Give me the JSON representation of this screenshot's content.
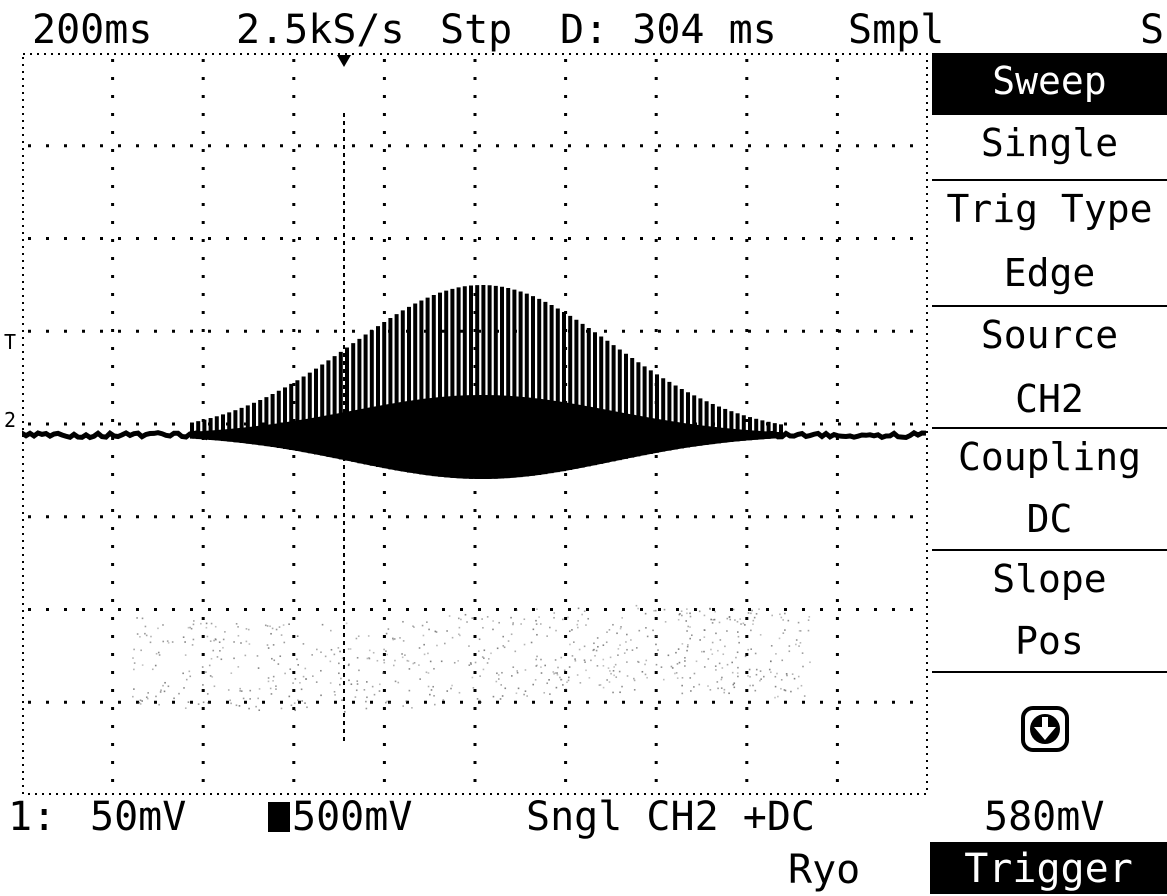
{
  "header": {
    "timebase": "200ms",
    "sample_rate": "2.5kS/s",
    "run_state": "Stp",
    "delay": "D: 304 ms",
    "acq_mode": "Smpl",
    "corner": "S"
  },
  "menu": {
    "items": [
      {
        "label": "Sweep",
        "selected": true
      },
      {
        "label": "Single",
        "selected": false
      },
      {
        "label": "Trig Type",
        "selected": false
      },
      {
        "label": "Edge",
        "selected": false
      },
      {
        "label": "Source",
        "selected": false
      },
      {
        "label": "CH2",
        "selected": false
      },
      {
        "label": "Coupling",
        "selected": false
      },
      {
        "label": "DC",
        "selected": false
      },
      {
        "label": "Slope",
        "selected": false
      },
      {
        "label": "Pos",
        "selected": false
      }
    ],
    "scroll_icon": "down-arrow-circle-icon",
    "trigger_level": "580mV",
    "tab": "Trigger"
  },
  "footer": {
    "ch1_label": "1:",
    "ch1_scale": "50mV",
    "ch2_scale": "500mV",
    "trigger_info": "Sngl CH2 +DC",
    "user": "Ryo"
  },
  "markers": {
    "trigger_level_marker": "T",
    "ch2_ground_marker": "2"
  },
  "colors": {
    "background": "#ffffff",
    "foreground": "#000000"
  }
}
